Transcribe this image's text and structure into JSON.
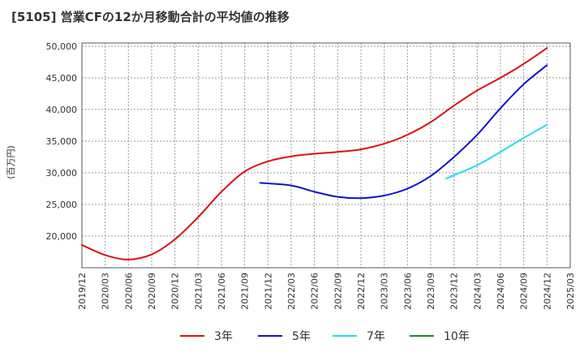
{
  "chart_data": {
    "type": "line",
    "title": "[5105]  営業CFの12か月移動合計の平均値の推移",
    "ylabel": "(百万円)",
    "xlabel": "",
    "ylim": [
      15000,
      50500
    ],
    "yticks": [
      20000,
      25000,
      30000,
      35000,
      40000,
      45000,
      50000
    ],
    "ytick_labels": [
      "20,000",
      "25,000",
      "30,000",
      "35,000",
      "40,000",
      "45,000",
      "50,000"
    ],
    "xticks": [
      "2019/12",
      "2020/03",
      "2020/06",
      "2020/09",
      "2020/12",
      "2021/03",
      "2021/06",
      "2021/09",
      "2021/12",
      "2022/03",
      "2022/06",
      "2022/09",
      "2022/12",
      "2023/03",
      "2023/06",
      "2023/09",
      "2023/12",
      "2024/03",
      "2024/06",
      "2024/09",
      "2024/12",
      "2025/03"
    ],
    "grid": true,
    "legend_position": "bottom",
    "series": [
      {
        "name": "3年",
        "color": "#dd1111",
        "points": [
          [
            "2019/12",
            18600
          ],
          [
            "2020/03",
            17000
          ],
          [
            "2020/06",
            16300
          ],
          [
            "2020/09",
            17100
          ],
          [
            "2020/12",
            19500
          ],
          [
            "2021/03",
            23000
          ],
          [
            "2021/06",
            27000
          ],
          [
            "2021/09",
            30200
          ],
          [
            "2021/12",
            31800
          ],
          [
            "2022/03",
            32600
          ],
          [
            "2022/06",
            33000
          ],
          [
            "2022/09",
            33300
          ],
          [
            "2022/12",
            33700
          ],
          [
            "2023/03",
            34600
          ],
          [
            "2023/06",
            36000
          ],
          [
            "2023/09",
            38000
          ],
          [
            "2023/12",
            40600
          ],
          [
            "2024/03",
            43000
          ],
          [
            "2024/06",
            45000
          ],
          [
            "2024/09",
            47200
          ],
          [
            "2024/12",
            49700
          ]
        ]
      },
      {
        "name": "5年",
        "color": "#1111cc",
        "points": [
          [
            "2021/11",
            28400
          ],
          [
            "2022/03",
            28000
          ],
          [
            "2022/06",
            27000
          ],
          [
            "2022/09",
            26200
          ],
          [
            "2022/12",
            26000
          ],
          [
            "2023/03",
            26400
          ],
          [
            "2023/06",
            27500
          ],
          [
            "2023/09",
            29500
          ],
          [
            "2023/12",
            32500
          ],
          [
            "2024/03",
            36000
          ],
          [
            "2024/06",
            40200
          ],
          [
            "2024/09",
            44000
          ],
          [
            "2024/12",
            47000
          ]
        ]
      },
      {
        "name": "7年",
        "color": "#22ddee",
        "points": [
          [
            "2023/11",
            29100
          ],
          [
            "2024/03",
            31200
          ],
          [
            "2024/06",
            33300
          ],
          [
            "2024/09",
            35500
          ],
          [
            "2024/12",
            37600
          ]
        ]
      },
      {
        "name": "10年",
        "color": "#228822",
        "points": []
      }
    ]
  }
}
